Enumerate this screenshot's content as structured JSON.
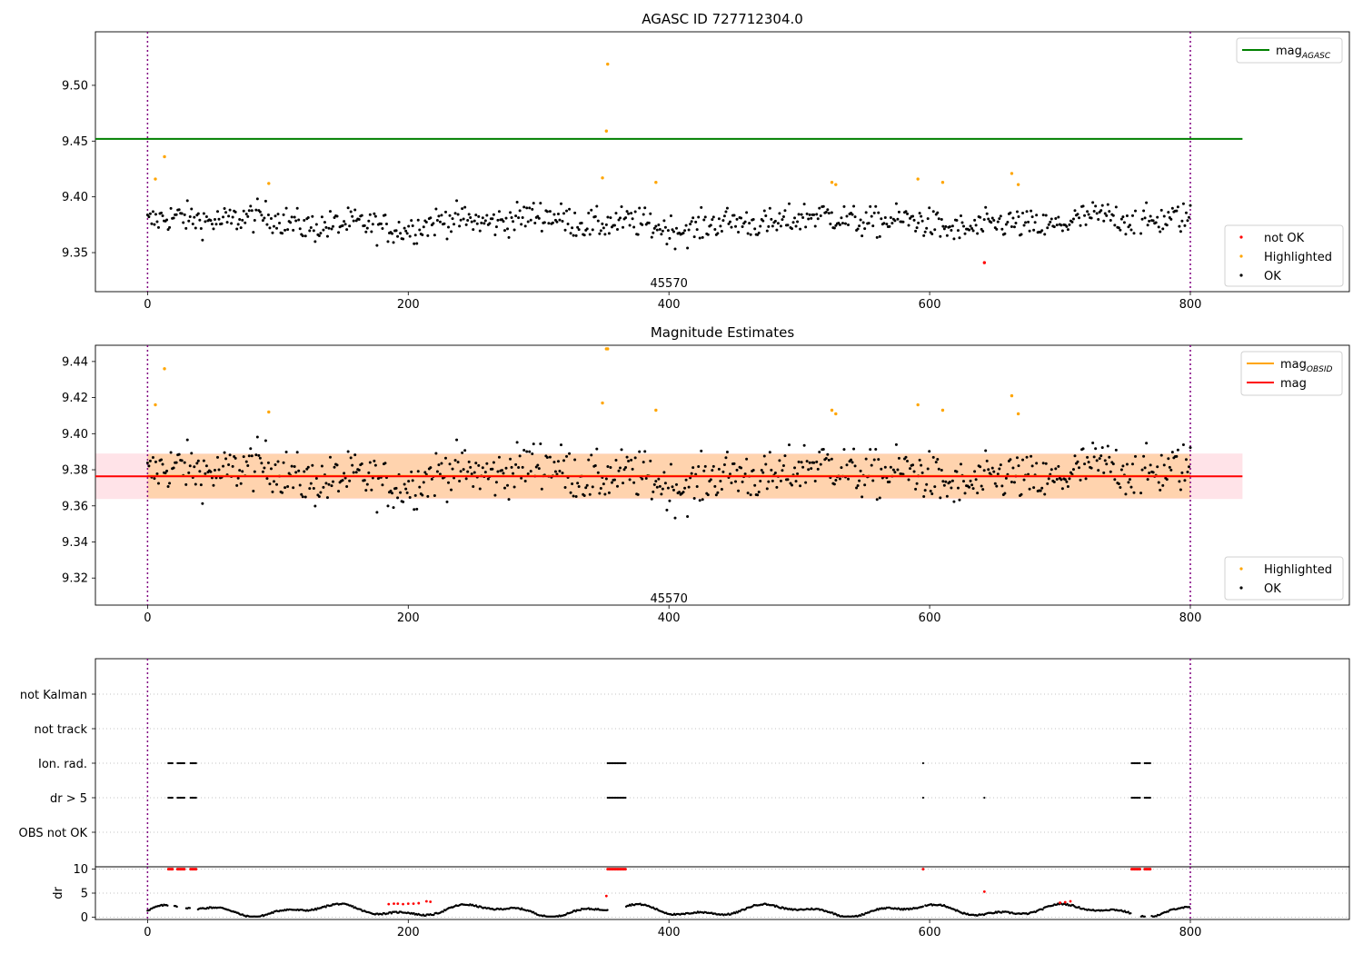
{
  "chart_data": [
    {
      "type": "scatter",
      "title": "AGASC ID 727712304.0",
      "xlim": [
        -40,
        922
      ],
      "ylim": [
        9.315,
        9.548
      ],
      "xticks": [
        0,
        200,
        400,
        600,
        800
      ],
      "yticks": [
        "9.35",
        "9.40",
        "9.45",
        "9.50"
      ],
      "grid": false,
      "legend_position": "upper-right and lower-right",
      "hline": {
        "name": "mag_AGASC",
        "value": 9.452,
        "x_range": [
          -40,
          840
        ],
        "color": "#008000"
      },
      "vlines": [
        0,
        800
      ],
      "obsid_label": {
        "text": "45570",
        "x": 400,
        "y": 9.323
      },
      "legend_top": [
        {
          "label": "mag",
          "sub": "AGASC",
          "color": "#008000",
          "kind": "line"
        }
      ],
      "legend_bottom": [
        {
          "label": "not OK",
          "color": "#ff0000",
          "kind": "dot"
        },
        {
          "label": "Highlighted",
          "color": "#ffa500",
          "kind": "dot"
        },
        {
          "label": "OK",
          "color": "#000000",
          "kind": "dot"
        }
      ],
      "series": [
        {
          "name": "not OK",
          "color": "#ff0000",
          "points": [
            [
              642,
              9.341
            ]
          ]
        },
        {
          "name": "Highlighted",
          "color": "#ffa500",
          "points": [
            [
              6,
              9.416
            ],
            [
              13,
              9.436
            ],
            [
              93,
              9.412
            ],
            [
              349,
              9.417
            ],
            [
              352,
              9.459
            ],
            [
              353,
              9.519
            ],
            [
              390,
              9.413
            ],
            [
              525,
              9.413
            ],
            [
              528,
              9.411
            ],
            [
              591,
              9.416
            ],
            [
              610,
              9.413
            ],
            [
              663,
              9.421
            ],
            [
              668,
              9.411
            ]
          ]
        },
        {
          "name": "OK",
          "color": "#000000",
          "generated": {
            "x_start": 0,
            "x_end": 800,
            "n": 760,
            "base": 9.377,
            "gaps": [
              [
                758,
                762
              ]
            ]
          }
        }
      ]
    },
    {
      "type": "scatter",
      "title": "Magnitude Estimates",
      "xlim": [
        -40,
        922
      ],
      "ylim": [
        9.305,
        9.449
      ],
      "xticks": [
        0,
        200,
        400,
        600,
        800
      ],
      "yticks": [
        "9.32",
        "9.34",
        "9.36",
        "9.38",
        "9.40",
        "9.42",
        "9.44"
      ],
      "grid": false,
      "legend_position": "upper-right and lower-right",
      "vlines": [
        0,
        800
      ],
      "bands": [
        {
          "name": "mag range",
          "y": [
            9.3638,
            9.389
          ],
          "x_range": [
            -40,
            840
          ],
          "color": "#ffc0cb",
          "opacity": 0.45
        },
        {
          "name": "mag_OBSID range",
          "y": [
            9.3642,
            9.3888
          ],
          "x_range": [
            0,
            800
          ],
          "color": "#ffa500",
          "opacity": 0.25
        }
      ],
      "hlines": [
        {
          "name": "mag_OBSID",
          "value": 9.3766,
          "x_range": [
            0,
            800
          ],
          "color": "#ffa500"
        },
        {
          "name": "mag",
          "value": 9.3764,
          "x_range": [
            -40,
            840
          ],
          "color": "#ff0000"
        }
      ],
      "obsid_label": {
        "text": "45570",
        "x": 400,
        "y": 9.309
      },
      "legend_top": [
        {
          "label": "mag",
          "sub": "OBSID",
          "color": "#ffa500",
          "kind": "line"
        },
        {
          "label": "mag",
          "sub": "",
          "color": "#ff0000",
          "kind": "line"
        }
      ],
      "legend_bottom": [
        {
          "label": "Highlighted",
          "color": "#ffa500",
          "kind": "dot"
        },
        {
          "label": "OK",
          "color": "#000000",
          "kind": "dot"
        }
      ],
      "series": [
        {
          "name": "Highlighted",
          "color": "#ffa500",
          "points": [
            [
              6,
              9.416
            ],
            [
              13,
              9.436
            ],
            [
              93,
              9.412
            ],
            [
              349,
              9.417
            ],
            [
              352,
              9.447
            ],
            [
              353,
              9.447
            ],
            [
              390,
              9.413
            ],
            [
              525,
              9.413
            ],
            [
              528,
              9.411
            ],
            [
              591,
              9.416
            ],
            [
              610,
              9.413
            ],
            [
              663,
              9.421
            ],
            [
              668,
              9.411
            ]
          ]
        },
        {
          "name": "OK",
          "color": "#000000",
          "generated": {
            "x_start": 0,
            "x_end": 800,
            "n": 760,
            "base": 9.377,
            "gaps": [
              [
                758,
                762
              ]
            ]
          }
        }
      ]
    },
    {
      "type": "scatter",
      "title": "",
      "xlim": [
        -40,
        922
      ],
      "categories": [
        "not Kalman",
        "not track",
        "Ion. rad.",
        "dr > 5",
        "OBS not OK"
      ],
      "grid": "horizontal dotted",
      "vlines": [
        0,
        800
      ],
      "flags": {
        "Ion. rad.": [
          [
            16,
            20
          ],
          [
            23,
            29
          ],
          [
            33,
            38
          ],
          [
            353,
            367
          ],
          [
            595,
            596
          ],
          [
            755,
            762
          ],
          [
            765,
            770
          ]
        ],
        "dr > 5": [
          [
            16,
            20
          ],
          [
            23,
            29
          ],
          [
            33,
            38
          ],
          [
            353,
            367
          ],
          [
            595,
            596
          ],
          [
            642,
            643
          ],
          [
            755,
            762
          ],
          [
            765,
            770
          ]
        ]
      }
    },
    {
      "type": "scatter",
      "title": "",
      "ylabel": "dr",
      "xlim": [
        -40,
        922
      ],
      "ylim": [
        -0.5,
        10.5
      ],
      "xticks": [
        0,
        200,
        400,
        600,
        800
      ],
      "yticks": [
        "0",
        "5",
        "10"
      ],
      "grid": "horizontal dotted",
      "vlines": [
        0,
        800
      ],
      "red_clipped_ranges": [
        [
          16,
          20
        ],
        [
          23,
          29
        ],
        [
          33,
          38
        ],
        [
          353,
          367
        ],
        [
          595,
          596
        ],
        [
          755,
          762
        ],
        [
          765,
          770
        ]
      ],
      "red_points": [
        [
          185,
          2.7
        ],
        [
          189,
          2.8
        ],
        [
          192,
          2.8
        ],
        [
          196,
          2.7
        ],
        [
          200,
          2.8
        ],
        [
          204,
          2.8
        ],
        [
          208,
          2.9
        ],
        [
          214,
          3.3
        ],
        [
          217,
          3.2
        ],
        [
          352,
          4.4
        ],
        [
          642,
          5.3
        ],
        [
          700,
          3.0
        ],
        [
          704,
          3.1
        ],
        [
          708,
          3.3
        ]
      ]
    }
  ]
}
